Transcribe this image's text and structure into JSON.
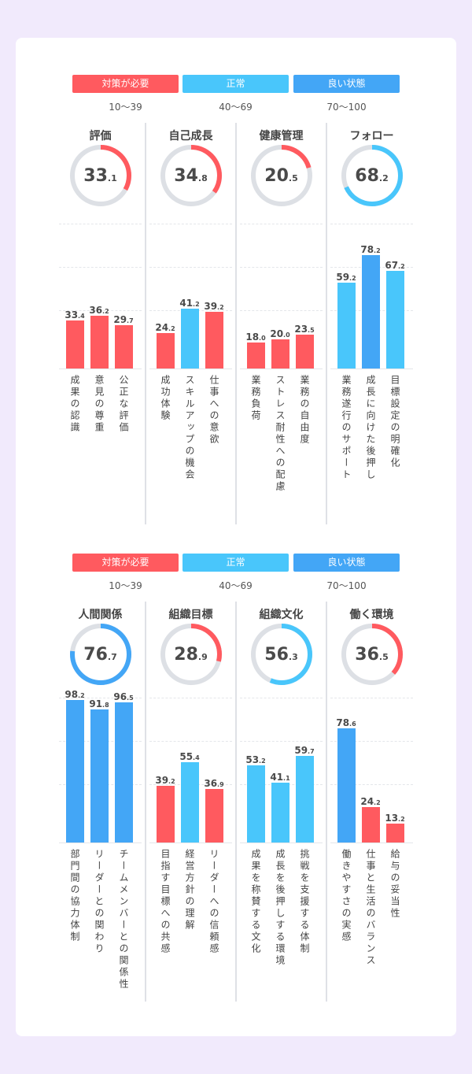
{
  "colors": {
    "red": "#ff5a5f",
    "cyan": "#49c6fb",
    "blue": "#43a6f6",
    "track": "#dde0e5"
  },
  "legend": [
    {
      "label": "対策が必要",
      "range": "10〜39"
    },
    {
      "label": "正常",
      "range": "40〜69"
    },
    {
      "label": "良い状態",
      "range": "70〜100"
    }
  ],
  "chart_data": [
    {
      "type": "bar",
      "panels": [
        {
          "title": "評価",
          "score": 33.1,
          "categories": [
            "成果の認識",
            "意見の尊重",
            "公正な評価"
          ],
          "values": [
            33.4,
            36.2,
            29.7
          ]
        },
        {
          "title": "自己成長",
          "score": 34.8,
          "categories": [
            "成功体験",
            "スキルアップの機会",
            "仕事への意欲"
          ],
          "values": [
            24.2,
            41.2,
            39.2
          ]
        },
        {
          "title": "健康管理",
          "score": 20.5,
          "categories": [
            "業務負荷",
            "ストレス耐性への配慮",
            "業務の自由度"
          ],
          "values": [
            18.0,
            20.0,
            23.5
          ]
        },
        {
          "title": "フォロー",
          "score": 68.2,
          "categories": [
            "業務遂行のサポート",
            "成長に向けた後押し",
            "目標設定の明確化"
          ],
          "values": [
            59.2,
            78.2,
            67.2
          ]
        }
      ]
    },
    {
      "type": "bar",
      "panels": [
        {
          "title": "人間関係",
          "score": 76.7,
          "categories": [
            "部門間の協力体制",
            "リーダーとの関わり",
            "チームメンバーとの関係性"
          ],
          "values": [
            98.2,
            91.8,
            96.5
          ]
        },
        {
          "title": "組織目標",
          "score": 28.9,
          "categories": [
            "目指す目標への共感",
            "経営方針の理解",
            "リーダーへの信頼感"
          ],
          "values": [
            39.2,
            55.4,
            36.9
          ]
        },
        {
          "title": "組織文化",
          "score": 56.3,
          "categories": [
            "成果を称賛する文化",
            "成長を後押しする環境",
            "挑戦を支援する体制"
          ],
          "values": [
            53.2,
            41.1,
            59.7
          ]
        },
        {
          "title": "働く環境",
          "score": 36.5,
          "categories": [
            "働きやすさの実感",
            "仕事と生活のバランス",
            "給与の妥当性"
          ],
          "values": [
            78.6,
            24.2,
            13.2
          ]
        }
      ]
    }
  ]
}
